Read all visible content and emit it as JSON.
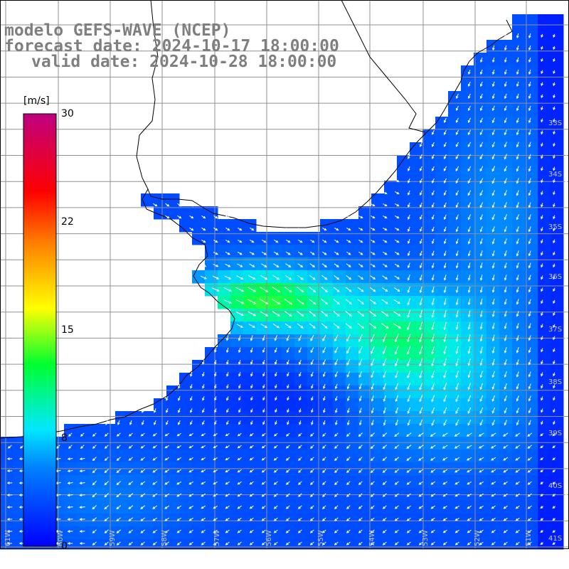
{
  "title": {
    "line1": "modelo GEFS-WAVE (NCEP)",
    "line2": "forecast date: 2024-10-17 18:00:00",
    "line3": "valid date: 2024-10-28 18:00:00"
  },
  "colorbar": {
    "unit": "[m/s]",
    "min": 0,
    "max": 30,
    "ticks": [
      "30",
      "22",
      "15",
      "8",
      "0"
    ],
    "colors": [
      "#0000ff",
      "#0060ff",
      "#00d8ff",
      "#00ff40",
      "#ffff00",
      "#ff8000",
      "#ff0000",
      "#c00080"
    ]
  },
  "map": {
    "lat_labels": [
      "33S",
      "34S",
      "35S",
      "36S",
      "37S",
      "38S",
      "39S",
      "40S",
      "41S"
    ],
    "lon_labels": [
      "61W",
      "60W",
      "59W",
      "58W",
      "57W",
      "56W",
      "55W",
      "54W",
      "53W",
      "52W",
      "51W"
    ],
    "colors": {
      "land": "#ffffff",
      "grid": "#909090",
      "coast": "#000000",
      "arrow": "#ffffff",
      "tick_text": "#c8c8c8"
    }
  }
}
